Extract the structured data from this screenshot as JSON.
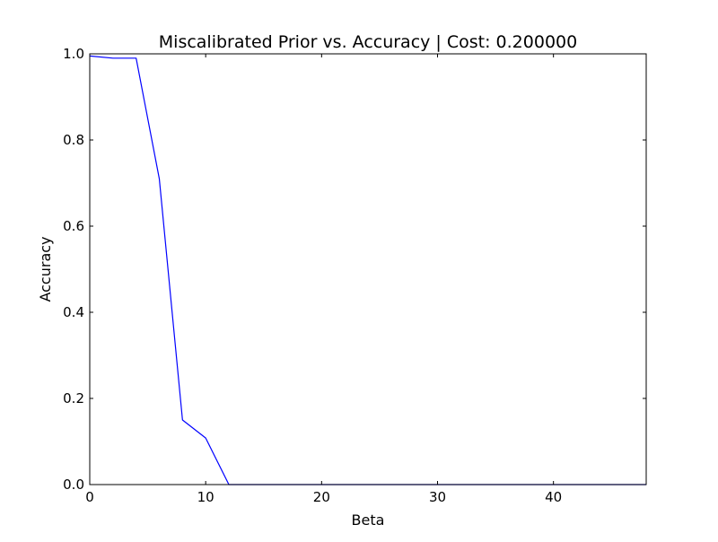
{
  "chart_data": {
    "type": "line",
    "title": "Miscalibrated Prior vs. Accuracy | Cost: 0.200000",
    "xlabel": "Beta",
    "ylabel": "Accuracy",
    "xlim": [
      0,
      48
    ],
    "ylim": [
      0.0,
      1.0
    ],
    "xticks": [
      0,
      10,
      20,
      30,
      40
    ],
    "xtick_labels": [
      "0",
      "10",
      "20",
      "30",
      "40"
    ],
    "yticks": [
      0.0,
      0.2,
      0.4,
      0.6,
      0.8,
      1.0
    ],
    "ytick_labels": [
      "0.0",
      "0.2",
      "0.4",
      "0.6",
      "0.8",
      "1.0"
    ],
    "grid": false,
    "legend": "none",
    "series": [
      {
        "color": "#0000ff",
        "x": [
          0,
          2,
          4,
          6,
          8,
          10,
          12,
          14,
          16,
          18,
          20,
          22,
          24,
          26,
          28,
          30,
          32,
          34,
          36,
          38,
          40,
          42,
          44,
          46,
          48
        ],
        "y": [
          0.995,
          0.99,
          0.99,
          0.71,
          0.15,
          0.108,
          0.0,
          0.0,
          0.0,
          0.0,
          0.0,
          0.0,
          0.0,
          0.0,
          0.0,
          0.0,
          0.0,
          0.0,
          0.0,
          0.0,
          0.0,
          0.0,
          0.0,
          0.0,
          0.0
        ]
      }
    ]
  }
}
